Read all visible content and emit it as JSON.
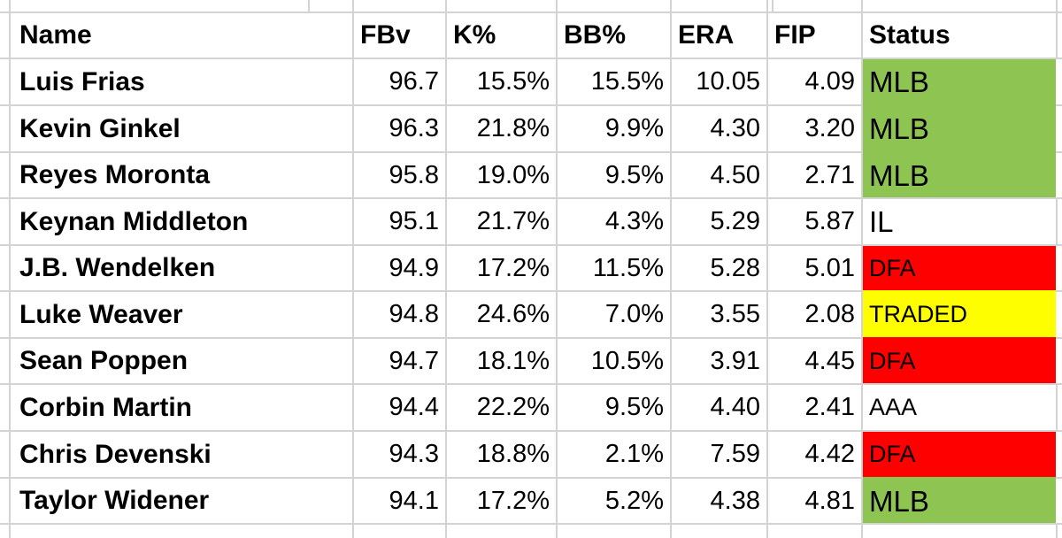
{
  "table": {
    "columns": [
      {
        "key": "name",
        "label": "Name"
      },
      {
        "key": "fbv",
        "label": "FBv"
      },
      {
        "key": "k_pct",
        "label": "K%"
      },
      {
        "key": "bb_pct",
        "label": "BB%"
      },
      {
        "key": "era",
        "label": "ERA"
      },
      {
        "key": "fip",
        "label": "FIP"
      },
      {
        "key": "status",
        "label": "Status"
      }
    ],
    "rows": [
      {
        "name": "Luis Frias",
        "fbv": "96.7",
        "k_pct": "15.5%",
        "bb_pct": "15.5%",
        "era": "10.05",
        "fip": "4.09",
        "status": "MLB",
        "status_fill": "green"
      },
      {
        "name": "Kevin Ginkel",
        "fbv": "96.3",
        "k_pct": "21.8%",
        "bb_pct": "9.9%",
        "era": "4.30",
        "fip": "3.20",
        "status": "MLB",
        "status_fill": "green"
      },
      {
        "name": "Reyes Moronta",
        "fbv": "95.8",
        "k_pct": "19.0%",
        "bb_pct": "9.5%",
        "era": "4.50",
        "fip": "2.71",
        "status": "MLB",
        "status_fill": "green"
      },
      {
        "name": "Keynan Middleton",
        "fbv": "95.1",
        "k_pct": "21.7%",
        "bb_pct": "4.3%",
        "era": "5.29",
        "fip": "5.87",
        "status": "IL",
        "status_fill": "none"
      },
      {
        "name": "J.B. Wendelken",
        "fbv": "94.9",
        "k_pct": "17.2%",
        "bb_pct": "11.5%",
        "era": "5.28",
        "fip": "5.01",
        "status": "DFA",
        "status_fill": "red"
      },
      {
        "name": "Luke Weaver",
        "fbv": "94.8",
        "k_pct": "24.6%",
        "bb_pct": "7.0%",
        "era": "3.55",
        "fip": "2.08",
        "status": "TRADED",
        "status_fill": "yellow"
      },
      {
        "name": "Sean Poppen",
        "fbv": "94.7",
        "k_pct": "18.1%",
        "bb_pct": "10.5%",
        "era": "3.91",
        "fip": "4.45",
        "status": "DFA",
        "status_fill": "red"
      },
      {
        "name": "Corbin Martin",
        "fbv": "94.4",
        "k_pct": "22.2%",
        "bb_pct": "9.5%",
        "era": "4.40",
        "fip": "2.41",
        "status": "AAA",
        "status_fill": "none"
      },
      {
        "name": "Chris Devenski",
        "fbv": "94.3",
        "k_pct": "18.8%",
        "bb_pct": "2.1%",
        "era": "7.59",
        "fip": "4.42",
        "status": "DFA",
        "status_fill": "red"
      },
      {
        "name": "Taylor Widener",
        "fbv": "94.1",
        "k_pct": "17.2%",
        "bb_pct": "5.2%",
        "era": "4.38",
        "fip": "4.81",
        "status": "MLB",
        "status_fill": "green"
      }
    ]
  },
  "colors": {
    "status_green": "#8ec552",
    "status_red": "#fe0000",
    "status_yellow": "#fffe00",
    "gridline": "#d3d3d3"
  }
}
